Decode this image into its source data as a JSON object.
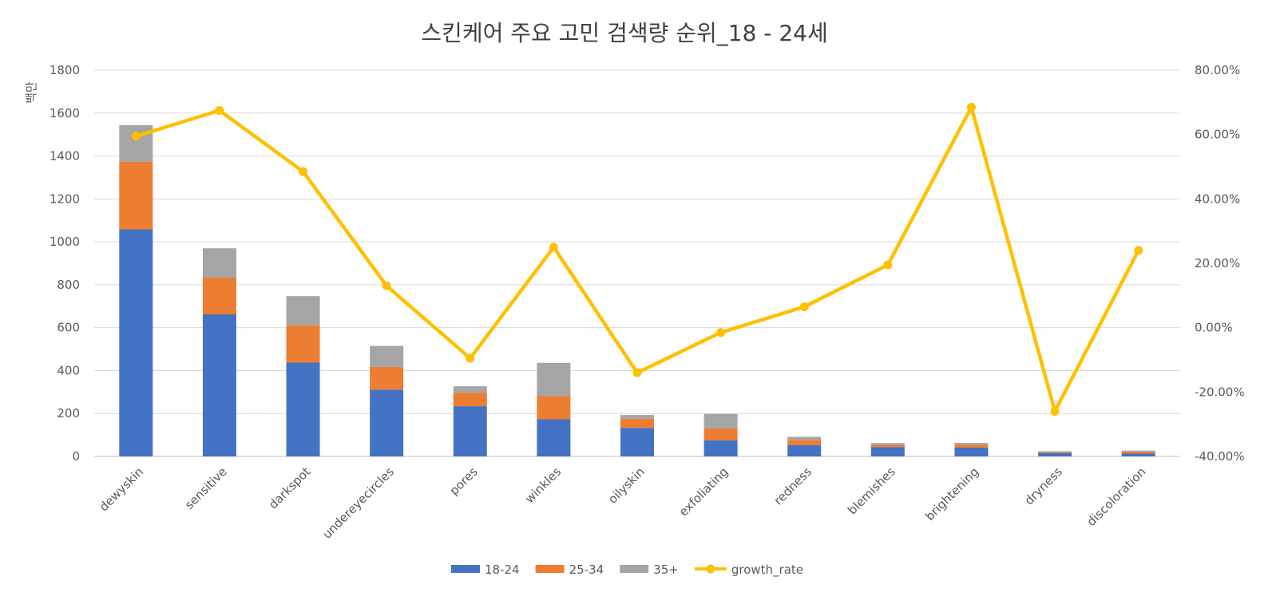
{
  "chart_data": {
    "type": "bar",
    "stacked": true,
    "title": "스킨케어 주요 고민 검색량 순위_18 - 24세",
    "ylabel": "백만",
    "ylim": [
      0,
      1800
    ],
    "yticks": [
      0,
      200,
      400,
      600,
      800,
      1000,
      1200,
      1400,
      1600,
      1800
    ],
    "y2lim": [
      -40,
      80
    ],
    "y2ticks": [
      "-40.00%",
      "-20.00%",
      "0.00%",
      "20.00%",
      "40.00%",
      "60.00%",
      "80.00%"
    ],
    "y2values": [
      -40,
      -20,
      0,
      20,
      40,
      60,
      80
    ],
    "categories": [
      "dewyskin",
      "sensitive",
      "darkspot",
      "undereyecircles",
      "pores",
      "winkles",
      "oilyskin",
      "exfoliating",
      "redness",
      "blemishes",
      "brightening",
      "dryness",
      "discoloration"
    ],
    "series": [
      {
        "name": "18-24",
        "color": "#4472C4",
        "values": [
          1058,
          662,
          437,
          311,
          234,
          173,
          133,
          75,
          52,
          44,
          41,
          16,
          13
        ]
      },
      {
        "name": "25-34",
        "color": "#ED7D31",
        "values": [
          315,
          171,
          174,
          106,
          63,
          108,
          42,
          55,
          25,
          11,
          14,
          5,
          10
        ]
      },
      {
        "name": "35+",
        "color": "#A5A5A5",
        "values": [
          171,
          137,
          136,
          98,
          30,
          155,
          18,
          68,
          14,
          7,
          8,
          3,
          4
        ]
      }
    ],
    "line_series": {
      "name": "growth_rate",
      "color": "#FFC000",
      "axis": "secondary",
      "values": [
        59.5,
        67.5,
        48.5,
        13.0,
        -9.5,
        25.0,
        -14.0,
        -1.5,
        6.5,
        19.5,
        68.5,
        -26.0,
        24.0
      ]
    },
    "grid": true,
    "legend": "bottom"
  }
}
